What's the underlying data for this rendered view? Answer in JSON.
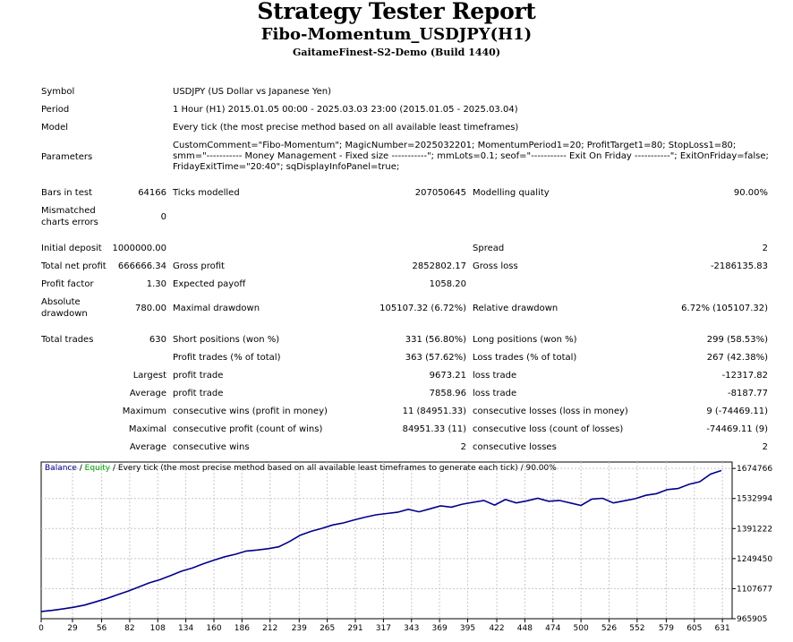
{
  "report": {
    "title": "Strategy Tester Report",
    "expert": "Fibo-Momentum_USDJPY(H1)",
    "server": "GaitameFinest-S2-Demo (Build 1440)"
  },
  "info": {
    "symbol_label": "Symbol",
    "symbol_value": "USDJPY (US Dollar vs Japanese Yen)",
    "period_label": "Period",
    "period_value": "1 Hour (H1) 2015.01.05 00:00 - 2025.03.03 23:00 (2015.01.05 - 2025.03.04)",
    "model_label": "Model",
    "model_value": "Every tick (the most precise method based on all available least timeframes)",
    "parameters_label": "Parameters",
    "parameters_value": "CustomComment=\"Fibo-Momentum\"; MagicNumber=2025032201; MomentumPeriod1=20; ProfitTarget1=80; StopLoss1=80; smm=\"----------- Money Management - Fixed size -----------\"; mmLots=0.1; seof=\"----------- Exit On Friday -----------\"; ExitOnFriday=false; FridayExitTime=\"20:40\"; sqDisplayInfoPanel=true;"
  },
  "stats": {
    "bars_label": "Bars in test",
    "bars_value": "64166",
    "ticks_label": "Ticks modelled",
    "ticks_value": "207050645",
    "quality_label": "Modelling quality",
    "quality_value": "90.00%",
    "mismatch_label_1": "Mismatched",
    "mismatch_label_2": "charts errors",
    "mismatch_value": "0",
    "deposit_label": "Initial deposit",
    "deposit_value": "1000000.00",
    "spread_label": "Spread",
    "spread_value": "2",
    "net_label": "Total net profit",
    "net_value": "666666.34",
    "gross_profit_label": "Gross profit",
    "gross_profit_value": "2852802.17",
    "gross_loss_label": "Gross loss",
    "gross_loss_value": "-2186135.83",
    "pf_label": "Profit factor",
    "pf_value": "1.30",
    "payoff_label": "Expected payoff",
    "payoff_value": "1058.20",
    "abs_dd_label_1": "Absolute",
    "abs_dd_label_2": "drawdown",
    "abs_dd_value": "780.00",
    "max_dd_label": "Maximal drawdown",
    "max_dd_value": "105107.32 (6.72%)",
    "rel_dd_label": "Relative drawdown",
    "rel_dd_value": "6.72% (105107.32)",
    "trades_label": "Total trades",
    "trades_value": "630",
    "short_label": "Short positions (won %)",
    "short_value": "331 (56.80%)",
    "long_label": "Long positions (won %)",
    "long_value": "299 (58.53%)",
    "profit_trades_label": "Profit trades (% of total)",
    "profit_trades_value": "363 (57.62%)",
    "loss_trades_label": "Loss trades (% of total)",
    "loss_trades_value": "267 (42.38%)",
    "largest_label": "Largest",
    "largest_profit_label": "profit trade",
    "largest_profit_value": "9673.21",
    "largest_loss_label": "loss trade",
    "largest_loss_value": "-12317.82",
    "average_label": "Average",
    "avg_profit_label": "profit trade",
    "avg_profit_value": "7858.96",
    "avg_loss_label": "loss trade",
    "avg_loss_value": "-8187.77",
    "maximum_label": "Maximum",
    "max_cw_label": "consecutive wins (profit in money)",
    "max_cw_value": "11 (84951.33)",
    "max_cl_label": "consecutive losses (loss in money)",
    "max_cl_value": "9 (-74469.11)",
    "maximal_label": "Maximal",
    "max_cp_label": "consecutive profit (count of wins)",
    "max_cp_value": "84951.33 (11)",
    "max_closs_label": "consecutive loss (count of losses)",
    "max_closs_value": "-74469.11 (9)",
    "average2_label": "Average",
    "avg_cw_label": "consecutive wins",
    "avg_cw_value": "2",
    "avg_cl_label": "consecutive losses",
    "avg_cl_value": "2"
  },
  "chart_data": {
    "type": "line",
    "legend": {
      "balance": "Balance",
      "sep1": " / ",
      "equity": "Equity",
      "rest": " / Every tick (the most precise method based on all available least timeframes to generate each tick) / 90.00%"
    },
    "colors": {
      "balance": "#00008b",
      "equity": "#00a000",
      "grid": "#c8c8c8"
    },
    "ylim": [
      965905,
      1705000
    ],
    "xlim": [
      0,
      640
    ],
    "y_ticks": [
      "965905",
      "1107677",
      "1249450",
      "1391222",
      "1532994",
      "1674766"
    ],
    "x_ticks": [
      "0",
      "29",
      "56",
      "82",
      "108",
      "134",
      "160",
      "186",
      "212",
      "239",
      "265",
      "291",
      "317",
      "343",
      "369",
      "395",
      "422",
      "448",
      "474",
      "500",
      "526",
      "552",
      "579",
      "605",
      "631"
    ],
    "series": [
      {
        "name": "Balance",
        "x": [
          0,
          10,
          20,
          30,
          40,
          50,
          60,
          70,
          80,
          90,
          100,
          110,
          120,
          130,
          140,
          150,
          160,
          170,
          180,
          190,
          200,
          210,
          220,
          230,
          240,
          250,
          260,
          270,
          280,
          290,
          300,
          310,
          320,
          330,
          340,
          350,
          360,
          370,
          380,
          390,
          400,
          410,
          420,
          430,
          440,
          450,
          460,
          470,
          480,
          490,
          500,
          510,
          520,
          530,
          540,
          550,
          560,
          570,
          580,
          590,
          600,
          610,
          620,
          630
        ],
        "values": [
          1000000,
          1005000,
          1012000,
          1020000,
          1030000,
          1045000,
          1060000,
          1078000,
          1095000,
          1115000,
          1135000,
          1150000,
          1170000,
          1190000,
          1205000,
          1225000,
          1242000,
          1258000,
          1270000,
          1285000,
          1290000,
          1296000,
          1305000,
          1330000,
          1360000,
          1378000,
          1392000,
          1408000,
          1418000,
          1432000,
          1445000,
          1456000,
          1462000,
          1468000,
          1482000,
          1470000,
          1484000,
          1498000,
          1492000,
          1506000,
          1515000,
          1524000,
          1502000,
          1528000,
          1512000,
          1522000,
          1534000,
          1520000,
          1524000,
          1512000,
          1500000,
          1530000,
          1534000,
          1512000,
          1522000,
          1532000,
          1548000,
          1556000,
          1575000,
          1580000,
          1600000,
          1612000,
          1648000,
          1665000
        ]
      }
    ]
  }
}
